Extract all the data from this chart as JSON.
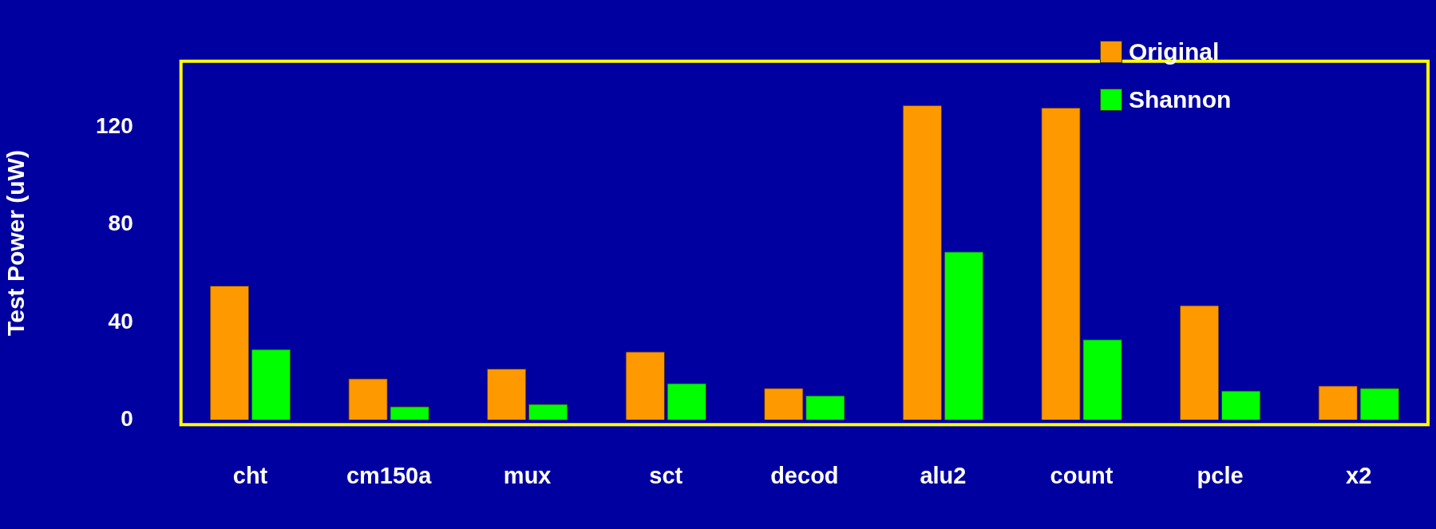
{
  "chart_data": {
    "type": "bar",
    "ylabel": "Test Power (uW)",
    "categories": [
      "cht",
      "cm150a",
      "mux",
      "sct",
      "decod",
      "alu2",
      "count",
      "pcle",
      "x2"
    ],
    "series": [
      {
        "name": "Original",
        "color": "#ff9900",
        "values": [
          55,
          17,
          21,
          28,
          13,
          129,
          128,
          47,
          14
        ]
      },
      {
        "name": "Shannon",
        "color": "#00ff00",
        "values": [
          29,
          5.5,
          6.5,
          15,
          10,
          69,
          33,
          12,
          13
        ]
      }
    ],
    "ylim": [
      -2,
      147
    ],
    "yticks": [
      0,
      40,
      80,
      120
    ],
    "grid": false,
    "legend": "top right"
  }
}
